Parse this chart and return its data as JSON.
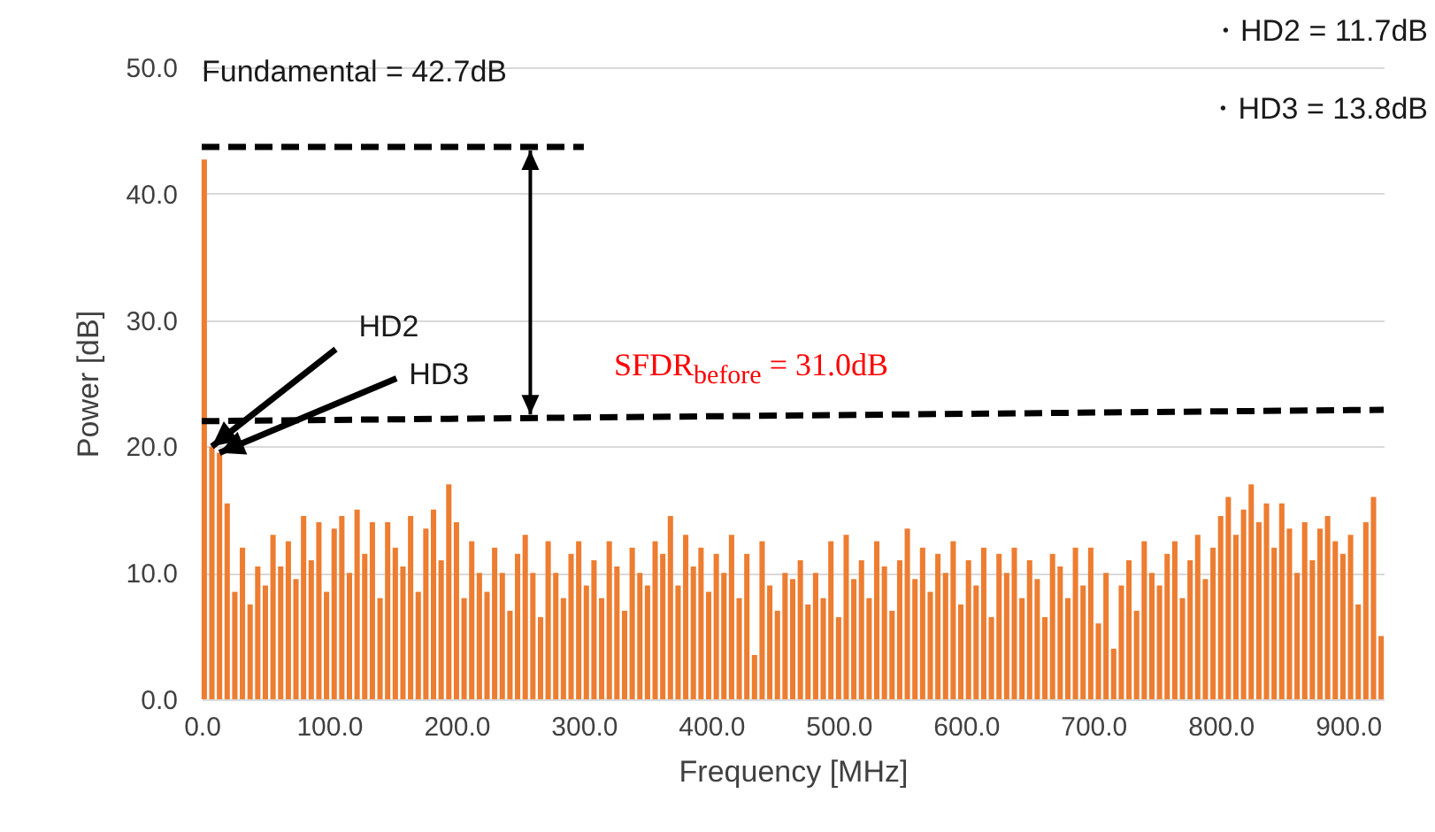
{
  "chart_data": {
    "type": "bar",
    "xlabel": "Frequency [MHz]",
    "ylabel": "Power [dB]",
    "xlim": [
      0,
      928
    ],
    "ylim": [
      0,
      50
    ],
    "xticks": [
      {
        "value": 0,
        "label": "0.0"
      },
      {
        "value": 100,
        "label": "100.0"
      },
      {
        "value": 200,
        "label": "200.0"
      },
      {
        "value": 300,
        "label": "300.0"
      },
      {
        "value": 400,
        "label": "400.0"
      },
      {
        "value": 500,
        "label": "500.0"
      },
      {
        "value": 600,
        "label": "600.0"
      },
      {
        "value": 700,
        "label": "700.0"
      },
      {
        "value": 800,
        "label": "800.0"
      },
      {
        "value": 900,
        "label": "900.0"
      }
    ],
    "yticks": [
      {
        "value": 0,
        "label": "0.0"
      },
      {
        "value": 10,
        "label": "10.0"
      },
      {
        "value": 20,
        "label": "20.0"
      },
      {
        "value": 30,
        "label": "30.0"
      },
      {
        "value": 40,
        "label": "40.0"
      },
      {
        "value": 50,
        "label": "50.0"
      }
    ],
    "grid": "y",
    "series": [
      {
        "color": "#ed7d31",
        "x": [
          2,
          8,
          14,
          20,
          26,
          32,
          38,
          44,
          50,
          56,
          62,
          68,
          74,
          80,
          86,
          92,
          98,
          104,
          110,
          116,
          122,
          128,
          134,
          140,
          146,
          152,
          158,
          164,
          170,
          176,
          182,
          188,
          194,
          200,
          206,
          212,
          218,
          224,
          230,
          236,
          242,
          248,
          254,
          260,
          266,
          272,
          278,
          284,
          290,
          296,
          302,
          308,
          314,
          320,
          326,
          332,
          338,
          344,
          350,
          356,
          362,
          368,
          374,
          380,
          386,
          392,
          398,
          404,
          410,
          416,
          422,
          428,
          434,
          440,
          446,
          452,
          458,
          464,
          470,
          476,
          482,
          488,
          494,
          500,
          506,
          512,
          518,
          524,
          530,
          536,
          542,
          548,
          554,
          560,
          566,
          572,
          578,
          584,
          590,
          596,
          602,
          608,
          614,
          620,
          626,
          632,
          638,
          644,
          650,
          656,
          662,
          668,
          674,
          680,
          686,
          692,
          698,
          704,
          710,
          716,
          722,
          728,
          734,
          740,
          746,
          752,
          758,
          764,
          770,
          776,
          782,
          788,
          794,
          800,
          806,
          812,
          818,
          824,
          830,
          836,
          842,
          848,
          854,
          860,
          866,
          872,
          878,
          884,
          890,
          896,
          902,
          908,
          914,
          920,
          926
        ],
        "values": [
          42.7,
          20.0,
          19.5,
          15.5,
          8.5,
          12.0,
          7.5,
          10.5,
          9.0,
          13.0,
          10.5,
          12.5,
          9.5,
          14.5,
          11.0,
          14.0,
          8.5,
          13.5,
          14.5,
          10.0,
          15.0,
          11.5,
          14.0,
          8.0,
          14.0,
          12.0,
          10.5,
          14.5,
          8.5,
          13.5,
          15.0,
          11.0,
          17.0,
          14.0,
          8.0,
          12.5,
          10.0,
          8.5,
          12.0,
          10.0,
          7.0,
          11.5,
          13.0,
          10.0,
          6.5,
          12.5,
          10.0,
          8.0,
          11.5,
          12.5,
          9.0,
          11.0,
          8.0,
          12.5,
          10.5,
          7.0,
          12.0,
          10.0,
          9.0,
          12.5,
          11.5,
          14.5,
          9.0,
          13.0,
          10.5,
          12.0,
          8.5,
          11.5,
          10.0,
          13.0,
          8.0,
          11.5,
          3.5,
          12.5,
          9.0,
          7.0,
          10.0,
          9.5,
          11.0,
          7.5,
          10.0,
          8.0,
          12.5,
          6.5,
          13.0,
          9.5,
          11.0,
          8.0,
          12.5,
          10.5,
          7.0,
          11.0,
          13.5,
          9.5,
          12.0,
          8.5,
          11.5,
          10.0,
          12.5,
          7.5,
          11.0,
          9.0,
          12.0,
          6.5,
          11.5,
          10.0,
          12.0,
          8.0,
          11.0,
          9.5,
          6.5,
          11.5,
          10.5,
          8.0,
          12.0,
          9.0,
          12.0,
          6.0,
          10.0,
          4.0,
          9.0,
          11.0,
          7.0,
          12.5,
          10.0,
          9.0,
          11.5,
          12.5,
          8.0,
          11.0,
          13.0,
          9.5,
          12.0,
          14.5,
          16.0,
          13.0,
          15.0,
          17.0,
          14.0,
          15.5,
          12.0,
          15.5,
          13.5,
          10.0,
          14.0,
          11.0,
          13.5,
          14.5,
          12.5,
          11.5,
          13.0,
          7.5,
          14.0,
          16.0,
          5.0
        ]
      },
      {
        "type": "line",
        "color": "#000000",
        "line_style": "dashed",
        "x": [
          0,
          300
        ],
        "values": [
          43.7,
          43.7
        ]
      },
      {
        "type": "line",
        "color": "#000000",
        "line_style": "dashed",
        "x": [
          0,
          928
        ],
        "values": [
          22.0,
          22.9
        ]
      }
    ],
    "annotations": [
      "Fundamental = 42.7dB",
      "・HD2 = 11.7dB",
      "・HD3 = 13.8dB",
      "SFDR$_{before}$ = 31.0dB",
      {
        "text": "HD2",
        "x": 8,
        "y": 20.0
      },
      {
        "text": "HD3",
        "x": 14,
        "y": 19.5
      }
    ]
  }
}
